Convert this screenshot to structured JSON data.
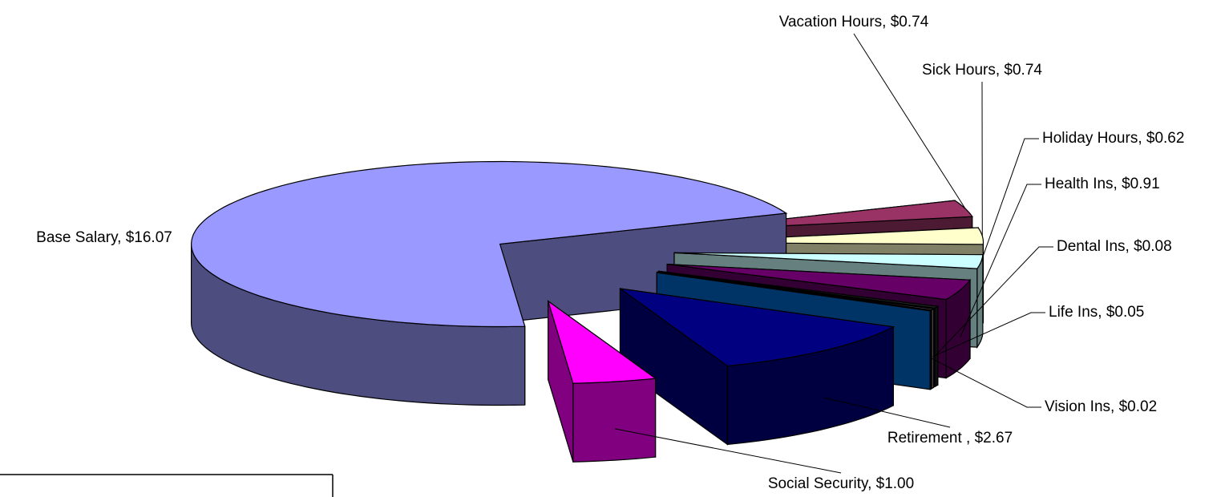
{
  "chart_data": {
    "type": "pie3d",
    "categories": [
      "Vacation Hours",
      "Sick Hours",
      "Holiday Hours",
      "Health Ins",
      "Dental Ins",
      "Life Ins",
      "Vision Ins",
      "Retirement ",
      "Social Security",
      "Base Salary"
    ],
    "values": [
      0.74,
      0.74,
      0.62,
      0.91,
      0.08,
      0.05,
      0.02,
      2.67,
      1.0,
      16.07
    ],
    "value_labels": [
      "Vacation Hours, $0.74",
      "Sick Hours, $0.74",
      "Holiday Hours, $0.62",
      "Health Ins, $0.91",
      "Dental Ins, $0.08",
      "Life Ins, $0.05",
      "Vision Ins, $0.02",
      "Retirement , $2.67",
      "Social Security, $1.00",
      "Base Salary, $16.07"
    ],
    "colors": [
      "#993366",
      "#ffffcc",
      "#ccffff",
      "#660066",
      "#222222",
      "#9999aa",
      "#0066cc",
      "#000080",
      "#ff00ff",
      "#9999ff"
    ]
  }
}
